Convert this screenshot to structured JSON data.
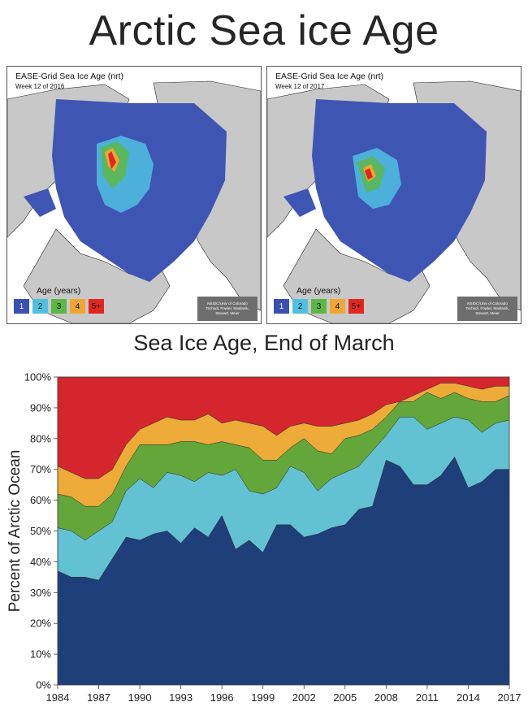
{
  "page": {
    "title": "Arctic Sea ice Age"
  },
  "maps": [
    {
      "title": "EASE-Grid Sea Ice Age (nrt)",
      "week": "Week 12 of 2016"
    },
    {
      "title": "EASE-Grid Sea Ice Age (nrt)",
      "week": "Week 12 of 2017"
    }
  ],
  "legend": {
    "title": "Age (years)",
    "items": [
      {
        "label": "1",
        "color": "#3a50b2",
        "text_color": "#ffffff"
      },
      {
        "label": "2",
        "color": "#4fc1e0",
        "text_color": "#111111"
      },
      {
        "label": "3",
        "color": "#5cb845",
        "text_color": "#111111"
      },
      {
        "label": "4",
        "color": "#f1a532",
        "text_color": "#111111"
      },
      {
        "label": "5+",
        "color": "#e2261f",
        "text_color": "#111111"
      }
    ]
  },
  "credit": [
    "NSIDC/Univ of Colorado",
    "Tschudi, Fowler, Maslanik,",
    "Stewart, Meier"
  ],
  "chart_data": {
    "type": "area",
    "title": "Sea Ice Age, End of March",
    "xlabel": "",
    "ylabel": "Percent of Arctic Ocean",
    "ylim": [
      0,
      100
    ],
    "yticks": [
      "0%",
      "10%",
      "20%",
      "30%",
      "40%",
      "50%",
      "60%",
      "70%",
      "80%",
      "90%",
      "100%"
    ],
    "xticks": [
      "1984",
      "1987",
      "1990",
      "1993",
      "1996",
      "1999",
      "2002",
      "2005",
      "2008",
      "2011",
      "2014",
      "2017"
    ],
    "stacked": true,
    "x": [
      1984,
      1985,
      1986,
      1987,
      1988,
      1989,
      1990,
      1991,
      1992,
      1993,
      1994,
      1995,
      1996,
      1997,
      1998,
      1999,
      2000,
      2001,
      2002,
      2003,
      2004,
      2005,
      2006,
      2007,
      2008,
      2009,
      2010,
      2011,
      2012,
      2013,
      2014,
      2015,
      2016,
      2017
    ],
    "series": [
      {
        "color": "#1f3f7a",
        "cumulative": [
          37,
          35,
          35,
          34,
          41,
          48,
          47,
          49,
          50,
          46,
          51,
          48,
          55,
          44,
          47,
          43,
          52,
          52,
          48,
          49,
          51,
          52,
          57,
          58,
          73,
          71,
          65,
          65,
          68,
          74,
          64,
          66,
          70,
          70
        ]
      },
      {
        "color": "#62c2d4",
        "cumulative": [
          51,
          50,
          47,
          50,
          53,
          63,
          67,
          64,
          69,
          68,
          66,
          69,
          68,
          70,
          63,
          62,
          64,
          71,
          69,
          63,
          67,
          69,
          71,
          76,
          81,
          87,
          87,
          83,
          85,
          87,
          86,
          82,
          85,
          86
        ]
      },
      {
        "color": "#63a63a",
        "cumulative": [
          62,
          61,
          58,
          58,
          62,
          71,
          78,
          78,
          78,
          79,
          79,
          78,
          79,
          78,
          77,
          73,
          73,
          77,
          80,
          76,
          75,
          80,
          81,
          83,
          87,
          92,
          92,
          95,
          93,
          95,
          93,
          92,
          92,
          94
        ]
      },
      {
        "color": "#eeab38",
        "cumulative": [
          71,
          69,
          67,
          67,
          70,
          78,
          83,
          85,
          87,
          86,
          86,
          88,
          85,
          86,
          85,
          84,
          81,
          84,
          85,
          84,
          84,
          85,
          86,
          88,
          91,
          92,
          94,
          96,
          98,
          98,
          97,
          96,
          97,
          97
        ]
      },
      {
        "color": "#d5252d",
        "cumulative": [
          100,
          100,
          100,
          100,
          100,
          100,
          100,
          100,
          100,
          100,
          100,
          100,
          100,
          100,
          100,
          100,
          100,
          100,
          100,
          100,
          100,
          100,
          100,
          100,
          100,
          100,
          100,
          100,
          100,
          100,
          100,
          100,
          100,
          100
        ]
      }
    ]
  }
}
